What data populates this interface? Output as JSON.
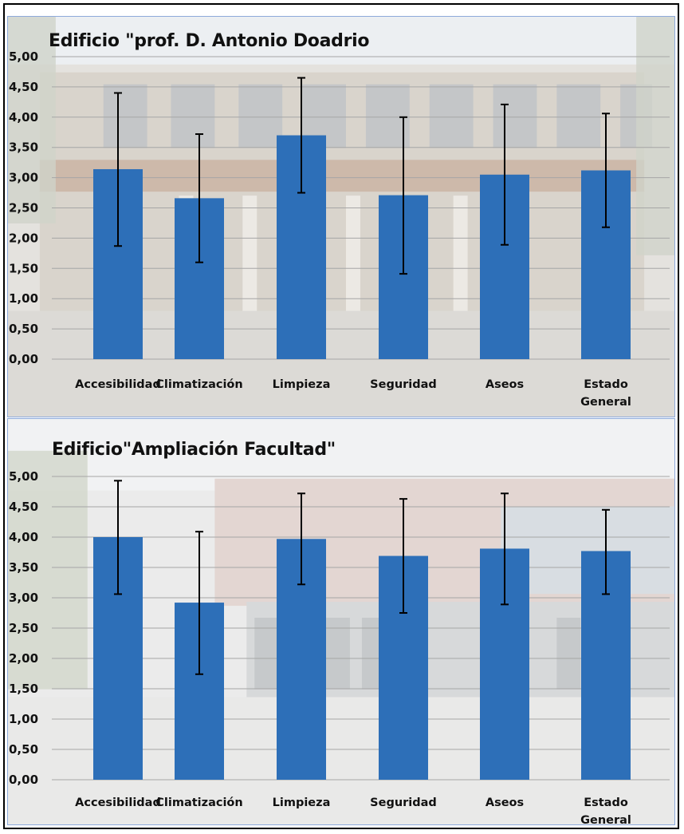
{
  "colors": {
    "bar": "#2d6fb8",
    "error_bar": "#000000",
    "grid": "#a6a6a6",
    "panel_border": "#8eaadb"
  },
  "chart_data": [
    {
      "type": "bar",
      "title": "Edificio \"prof. D. Antonio Doadrio",
      "categories": [
        "Accesibilidad",
        "Climatización",
        "Limpieza",
        "Seguridad",
        "Aseos",
        "Estado General"
      ],
      "category_labels": [
        [
          "Accesibilidad"
        ],
        [
          "Climatización"
        ],
        [
          "Limpieza"
        ],
        [
          "Seguridad"
        ],
        [
          "Aseos"
        ],
        [
          "Estado",
          "General"
        ]
      ],
      "values": [
        3.14,
        2.66,
        3.7,
        2.71,
        3.05,
        3.12
      ],
      "error_low": [
        1.87,
        1.6,
        2.75,
        1.41,
        1.89,
        2.18
      ],
      "error_high": [
        4.4,
        3.72,
        4.65,
        4.0,
        4.21,
        4.06
      ],
      "ylim": [
        0,
        5
      ],
      "yticks": [
        "0,00",
        "0,50",
        "1,00",
        "1,50",
        "2,00",
        "2,50",
        "3,00",
        "3,50",
        "4,00",
        "4,50",
        "5,00"
      ],
      "grid": true,
      "legend": "none",
      "xlabel": "",
      "ylabel": ""
    },
    {
      "type": "bar",
      "title": "Edificio\"Ampliación Facultad\"",
      "categories": [
        "Accesibilidad",
        "Climatización",
        "Limpieza",
        "Seguridad",
        "Aseos",
        "Estado General"
      ],
      "category_labels": [
        [
          "Accesibilidad"
        ],
        [
          "Climatización"
        ],
        [
          "Limpieza"
        ],
        [
          "Seguridad"
        ],
        [
          "Aseos"
        ],
        [
          "Estado",
          "General"
        ]
      ],
      "values": [
        4.0,
        2.92,
        3.97,
        3.69,
        3.81,
        3.77
      ],
      "error_low": [
        3.06,
        1.74,
        3.22,
        2.75,
        2.89,
        3.06
      ],
      "error_high": [
        4.93,
        4.09,
        4.72,
        4.63,
        4.72,
        4.45
      ],
      "ylim": [
        0,
        5
      ],
      "yticks": [
        "0,00",
        "0,50",
        "1,00",
        "1,50",
        "2,00",
        "2,50",
        "3,00",
        "3,50",
        "4,00",
        "4,50",
        "5,00"
      ],
      "grid": true,
      "legend": "none",
      "xlabel": "",
      "ylabel": ""
    }
  ]
}
